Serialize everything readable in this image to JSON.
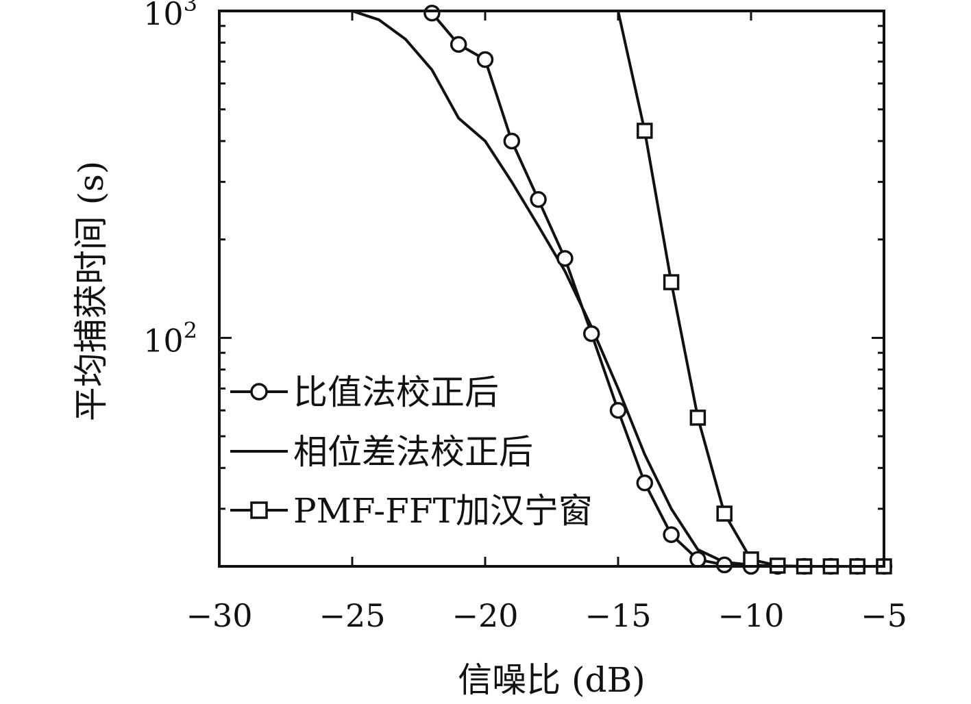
{
  "chart_data": {
    "type": "line",
    "xlabel": "信噪比 (dB)",
    "ylabel": "平均捕获时间 (s)",
    "xlim": [
      -30,
      -5
    ],
    "ylim": [
      20,
      1000
    ],
    "y_scale": "log",
    "grid": false,
    "legend_position": "lower-left",
    "x_ticks": [
      {
        "value": -30,
        "label": "−30"
      },
      {
        "value": -25,
        "label": "−25"
      },
      {
        "value": -20,
        "label": "−20"
      },
      {
        "value": -15,
        "label": "−15"
      },
      {
        "value": -10,
        "label": "−10"
      },
      {
        "value": -5,
        "label": "−5"
      }
    ],
    "y_ticks": [
      {
        "value": 100,
        "base": "10",
        "exp": "2"
      },
      {
        "value": 1000,
        "base": "10",
        "exp": "3"
      }
    ],
    "series": [
      {
        "name": "比值法校正后",
        "marker": "circle",
        "x": [
          -22,
          -21,
          -20,
          -19,
          -18,
          -17,
          -16,
          -15,
          -14,
          -13,
          -12,
          -11,
          -10,
          -9,
          -8,
          -7,
          -6,
          -5
        ],
        "y": [
          985,
          790,
          710,
          400,
          265,
          175,
          103,
          60,
          36,
          25,
          21,
          20.2,
          20.0,
          20.0,
          20.0,
          20.0,
          20.0,
          20.0
        ]
      },
      {
        "name": "相位差法校正后",
        "marker": "none",
        "x": [
          -25,
          -24,
          -23,
          -22,
          -21,
          -20,
          -19,
          -18,
          -17,
          -16,
          -15,
          -14,
          -13,
          -12,
          -11,
          -10,
          -9,
          -8,
          -7,
          -6,
          -5
        ],
        "y": [
          1000,
          940,
          820,
          660,
          470,
          400,
          300,
          220,
          160,
          108,
          70,
          44,
          30,
          22.5,
          20.6,
          20.2,
          20.0,
          20.0,
          20.0,
          20.0,
          20.0
        ]
      },
      {
        "name": "PMF-FFT加汉宁窗",
        "marker": "square",
        "x": [
          -15,
          -14,
          -13,
          -12,
          -11,
          -10,
          -9,
          -8,
          -7,
          -6,
          -5
        ],
        "y": [
          1000,
          430,
          148,
          57,
          29,
          21,
          20.1,
          20.0,
          20.0,
          20.0,
          20.0
        ]
      }
    ]
  }
}
